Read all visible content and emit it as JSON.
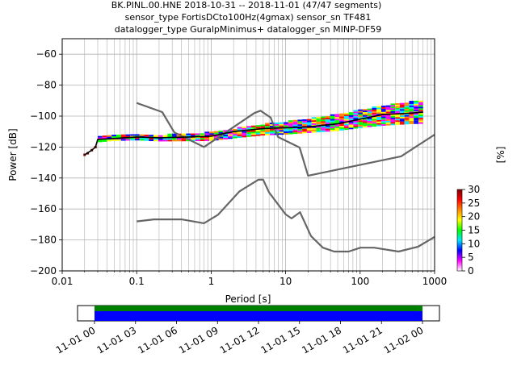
{
  "title_lines": [
    "BK.PINL.00.HNE   2018-10-31 -- 2018-11-01  (47/47 segments)",
    "sensor_type FortisDCto100Hz(4gmax) sensor_sn TF481",
    "datalogger_type GuralpMinimus+ datalogger_sn MINP-DF59"
  ],
  "chart_data": [
    {
      "type": "heatmap",
      "title": "BK.PINL.00.HNE   2018-10-31 -- 2018-11-01  (47/47 segments)",
      "xlabel": "Period [s]",
      "ylabel": "Power [dB]",
      "xscale": "log",
      "xlim": [
        0.01,
        1000
      ],
      "ylim": [
        -200,
        -50
      ],
      "x_ticks": [
        0.01,
        0.1,
        1,
        10,
        100,
        1000
      ],
      "x_tick_labels": [
        "0.01",
        "0.1",
        "1",
        "10",
        "100",
        "1000"
      ],
      "y_ticks": [
        -200,
        -180,
        -160,
        -140,
        -120,
        -100,
        -80,
        -60
      ],
      "y_tick_labels": [
        "−200",
        "−180",
        "−160",
        "−140",
        "−120",
        "−100",
        "−80",
        "−60"
      ],
      "grid": true,
      "colorbar": {
        "label": "[%]",
        "range": [
          0,
          30
        ],
        "ticks": [
          0,
          5,
          10,
          15,
          20,
          25,
          30
        ],
        "colors": [
          "#ffffff",
          "#ff00ff",
          "#0000ff",
          "#00e5ff",
          "#00ff00",
          "#ffff00",
          "#ff8800",
          "#ff0000",
          "#7a0000"
        ]
      },
      "series": [
        {
          "role": "noise-model-high",
          "color": "#666666",
          "x": [
            0.1,
            0.22,
            0.32,
            0.8,
            3.8,
            4.6,
            6.3,
            7.9,
            15.4,
            20,
            354.8,
            1000
          ],
          "y": [
            -91.5,
            -97.4,
            -110.5,
            -120,
            -98,
            -96.5,
            -101,
            -113.5,
            -120.3,
            -138.5,
            -126,
            -112
          ]
        },
        {
          "role": "noise-model-low",
          "color": "#666666",
          "x": [
            0.1,
            0.17,
            0.4,
            0.8,
            1.24,
            2.4,
            4.3,
            5,
            6,
            10,
            12,
            15.6,
            21.9,
            31.6,
            45,
            70,
            101,
            154,
            328,
            600,
            1000
          ],
          "y": [
            -168,
            -166.7,
            -166.7,
            -169.2,
            -163.7,
            -148.6,
            -141.1,
            -141.1,
            -149.3,
            -163.5,
            -166.1,
            -162.1,
            -177.5,
            -185,
            -187.5,
            -187.5,
            -185,
            -185,
            -187.5,
            -184.4,
            -178
          ]
        },
        {
          "role": "mode",
          "color": "#000000",
          "x": [
            0.02,
            0.025,
            0.028,
            0.03,
            0.05,
            0.1,
            0.2,
            0.5,
            1,
            2,
            5,
            10,
            20,
            50,
            100,
            200,
            500,
            700
          ],
          "y": [
            -125,
            -122,
            -120,
            -115,
            -114.5,
            -113.5,
            -114,
            -113.5,
            -113,
            -110,
            -108,
            -107.5,
            -107,
            -105,
            -102,
            -99,
            -98,
            -97.5
          ]
        }
      ],
      "psd_median": {
        "x": [
          0.02,
          0.03,
          0.05,
          0.1,
          0.2,
          0.5,
          1,
          2,
          5,
          10,
          20,
          50,
          100,
          200,
          500,
          700
        ],
        "y": [
          -125,
          -115,
          -114,
          -113.5,
          -114,
          -113.5,
          -113,
          -111,
          -108.5,
          -107.5,
          -106,
          -104,
          -101.5,
          -99.5,
          -97.5,
          -97
        ]
      }
    },
    {
      "type": "timeline",
      "data_coverage": "full",
      "tick_labels": [
        "11-01 00",
        "11-01 03",
        "11-01 06",
        "11-01 09",
        "11-01 12",
        "11-01 15",
        "11-01 18",
        "11-01 21",
        "11-02 00"
      ],
      "colors": {
        "gaps": "#008000",
        "data": "#0000ff"
      }
    }
  ]
}
